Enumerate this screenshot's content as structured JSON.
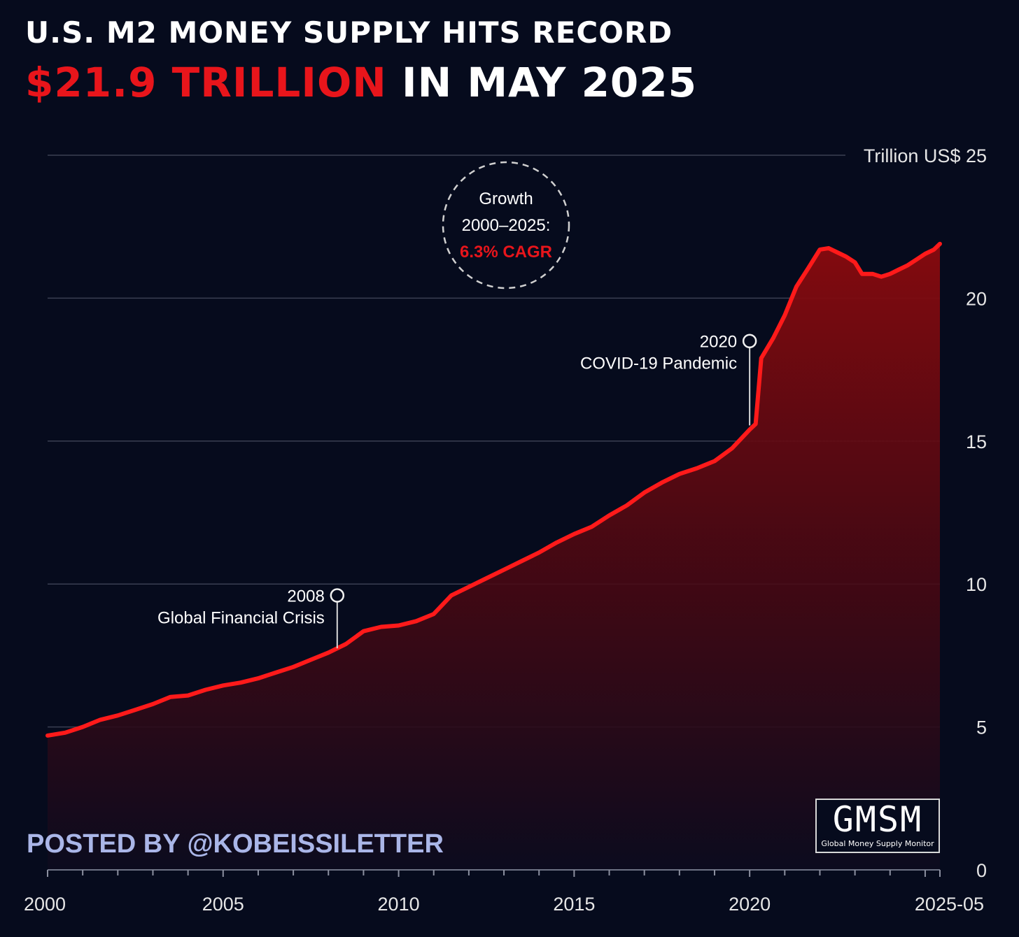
{
  "header": {
    "title_line1": "U.S. M2 MONEY SUPPLY HITS RECORD",
    "title_accent": "$21.9 TRILLION",
    "title_rest": "IN MAY 2025"
  },
  "footer": {
    "posted_by": "POSTED BY @KOBEISSILETTER"
  },
  "logo": {
    "main": "GMSM",
    "sub": "Global Money Supply Monitor"
  },
  "colors": {
    "background": "#060b1d",
    "line": "#ff1a1a",
    "accent": "#e8151b",
    "grid": "#3a3f52",
    "text": "#ffffff"
  },
  "chart_data": {
    "type": "area",
    "title": "U.S. M2 MONEY SUPPLY HITS RECORD",
    "subtitle": "$21.9 TRILLION IN MAY 2025",
    "xlabel": "",
    "ylabel": "Trillion US$",
    "xlim": [
      2000,
      2025.42
    ],
    "ylim": [
      0,
      25
    ],
    "y_ticks": [
      0,
      5,
      10,
      15,
      20,
      25
    ],
    "x_tick_labels": [
      {
        "x": 2000,
        "label": "2000"
      },
      {
        "x": 2005,
        "label": "2005"
      },
      {
        "x": 2010,
        "label": "2010"
      },
      {
        "x": 2015,
        "label": "2015"
      },
      {
        "x": 2020,
        "label": "2020"
      },
      {
        "x": 2025.42,
        "label": "2025-05"
      }
    ],
    "grid": true,
    "series": [
      {
        "name": "M2",
        "points": [
          [
            2000.0,
            4.7
          ],
          [
            2000.5,
            4.8
          ],
          [
            2001.0,
            5.0
          ],
          [
            2001.5,
            5.25
          ],
          [
            2002.0,
            5.4
          ],
          [
            2002.5,
            5.6
          ],
          [
            2003.0,
            5.8
          ],
          [
            2003.5,
            6.05
          ],
          [
            2004.0,
            6.1
          ],
          [
            2004.5,
            6.3
          ],
          [
            2005.0,
            6.45
          ],
          [
            2005.5,
            6.55
          ],
          [
            2006.0,
            6.7
          ],
          [
            2006.5,
            6.9
          ],
          [
            2007.0,
            7.1
          ],
          [
            2007.5,
            7.35
          ],
          [
            2008.0,
            7.6
          ],
          [
            2008.5,
            7.9
          ],
          [
            2009.0,
            8.35
          ],
          [
            2009.5,
            8.5
          ],
          [
            2010.0,
            8.55
          ],
          [
            2010.5,
            8.7
          ],
          [
            2011.0,
            8.95
          ],
          [
            2011.5,
            9.6
          ],
          [
            2012.0,
            9.9
          ],
          [
            2012.5,
            10.2
          ],
          [
            2013.0,
            10.5
          ],
          [
            2013.5,
            10.8
          ],
          [
            2014.0,
            11.1
          ],
          [
            2014.5,
            11.45
          ],
          [
            2015.0,
            11.75
          ],
          [
            2015.5,
            12.0
          ],
          [
            2016.0,
            12.4
          ],
          [
            2016.5,
            12.75
          ],
          [
            2017.0,
            13.2
          ],
          [
            2017.5,
            13.55
          ],
          [
            2018.0,
            13.85
          ],
          [
            2018.5,
            14.05
          ],
          [
            2019.0,
            14.3
          ],
          [
            2019.5,
            14.75
          ],
          [
            2020.0,
            15.4
          ],
          [
            2020.17,
            15.6
          ],
          [
            2020.33,
            17.9
          ],
          [
            2020.67,
            18.6
          ],
          [
            2021.0,
            19.4
          ],
          [
            2021.33,
            20.4
          ],
          [
            2021.67,
            21.05
          ],
          [
            2022.0,
            21.7
          ],
          [
            2022.25,
            21.75
          ],
          [
            2022.5,
            21.6
          ],
          [
            2022.75,
            21.45
          ],
          [
            2023.0,
            21.25
          ],
          [
            2023.2,
            20.85
          ],
          [
            2023.5,
            20.85
          ],
          [
            2023.75,
            20.75
          ],
          [
            2024.0,
            20.85
          ],
          [
            2024.25,
            21.0
          ],
          [
            2024.5,
            21.15
          ],
          [
            2024.75,
            21.35
          ],
          [
            2025.0,
            21.55
          ],
          [
            2025.25,
            21.7
          ],
          [
            2025.42,
            21.9
          ]
        ]
      }
    ],
    "annotations": [
      {
        "x": 2008.25,
        "y": 7.75,
        "year": "2008",
        "label": "Global Financial Crisis",
        "side": "left",
        "marker_y": 9.6
      },
      {
        "x": 2020.0,
        "y": 15.55,
        "year": "2020",
        "label": "COVID-19 Pandemic",
        "side": "left",
        "marker_y": 18.5
      }
    ],
    "callout": {
      "line1": "Growth",
      "line2": "2000–2025:",
      "line3": "6.3% CAGR"
    }
  }
}
